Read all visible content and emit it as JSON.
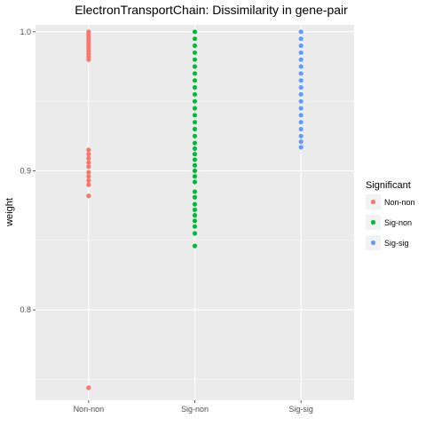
{
  "chart_data": {
    "type": "scatter",
    "title": "ElectronTransportChain: Dissimilarity in gene-pair",
    "xlabel": "",
    "ylabel": "weight",
    "categories": [
      "Non-non",
      "Sig-non",
      "Sig-sig"
    ],
    "ylim": [
      0.735,
      1.005
    ],
    "yticks": [
      0.8,
      0.9,
      1.0
    ],
    "ytick_labels": [
      "0.8",
      "0.9",
      "1.0"
    ],
    "grid": true,
    "legend": {
      "title": "Significant",
      "placement": "right",
      "entries": [
        "Non-non",
        "Sig-non",
        "Sig-sig"
      ]
    },
    "series": [
      {
        "name": "Non-non",
        "color": "#f8766d",
        "category": "Non-non",
        "values": [
          1.0,
          0.998,
          0.996,
          0.994,
          0.992,
          0.99,
          0.988,
          0.986,
          0.984,
          0.982,
          0.98,
          0.915,
          0.912,
          0.909,
          0.906,
          0.903,
          0.899,
          0.896,
          0.893,
          0.89,
          0.882,
          0.744
        ]
      },
      {
        "name": "Sig-non",
        "color": "#00ba38",
        "category": "Sig-non",
        "values": [
          1.0,
          0.995,
          0.99,
          0.985,
          0.98,
          0.975,
          0.97,
          0.965,
          0.96,
          0.955,
          0.95,
          0.945,
          0.94,
          0.935,
          0.93,
          0.925,
          0.92,
          0.916,
          0.912,
          0.908,
          0.904,
          0.9,
          0.896,
          0.892,
          0.885,
          0.881,
          0.876,
          0.872,
          0.868,
          0.864,
          0.86,
          0.855,
          0.846
        ]
      },
      {
        "name": "Sig-sig",
        "color": "#619cff",
        "category": "Sig-sig",
        "values": [
          1.0,
          0.995,
          0.99,
          0.985,
          0.98,
          0.975,
          0.97,
          0.965,
          0.96,
          0.955,
          0.95,
          0.945,
          0.94,
          0.935,
          0.93,
          0.925,
          0.921,
          0.917
        ]
      }
    ]
  }
}
